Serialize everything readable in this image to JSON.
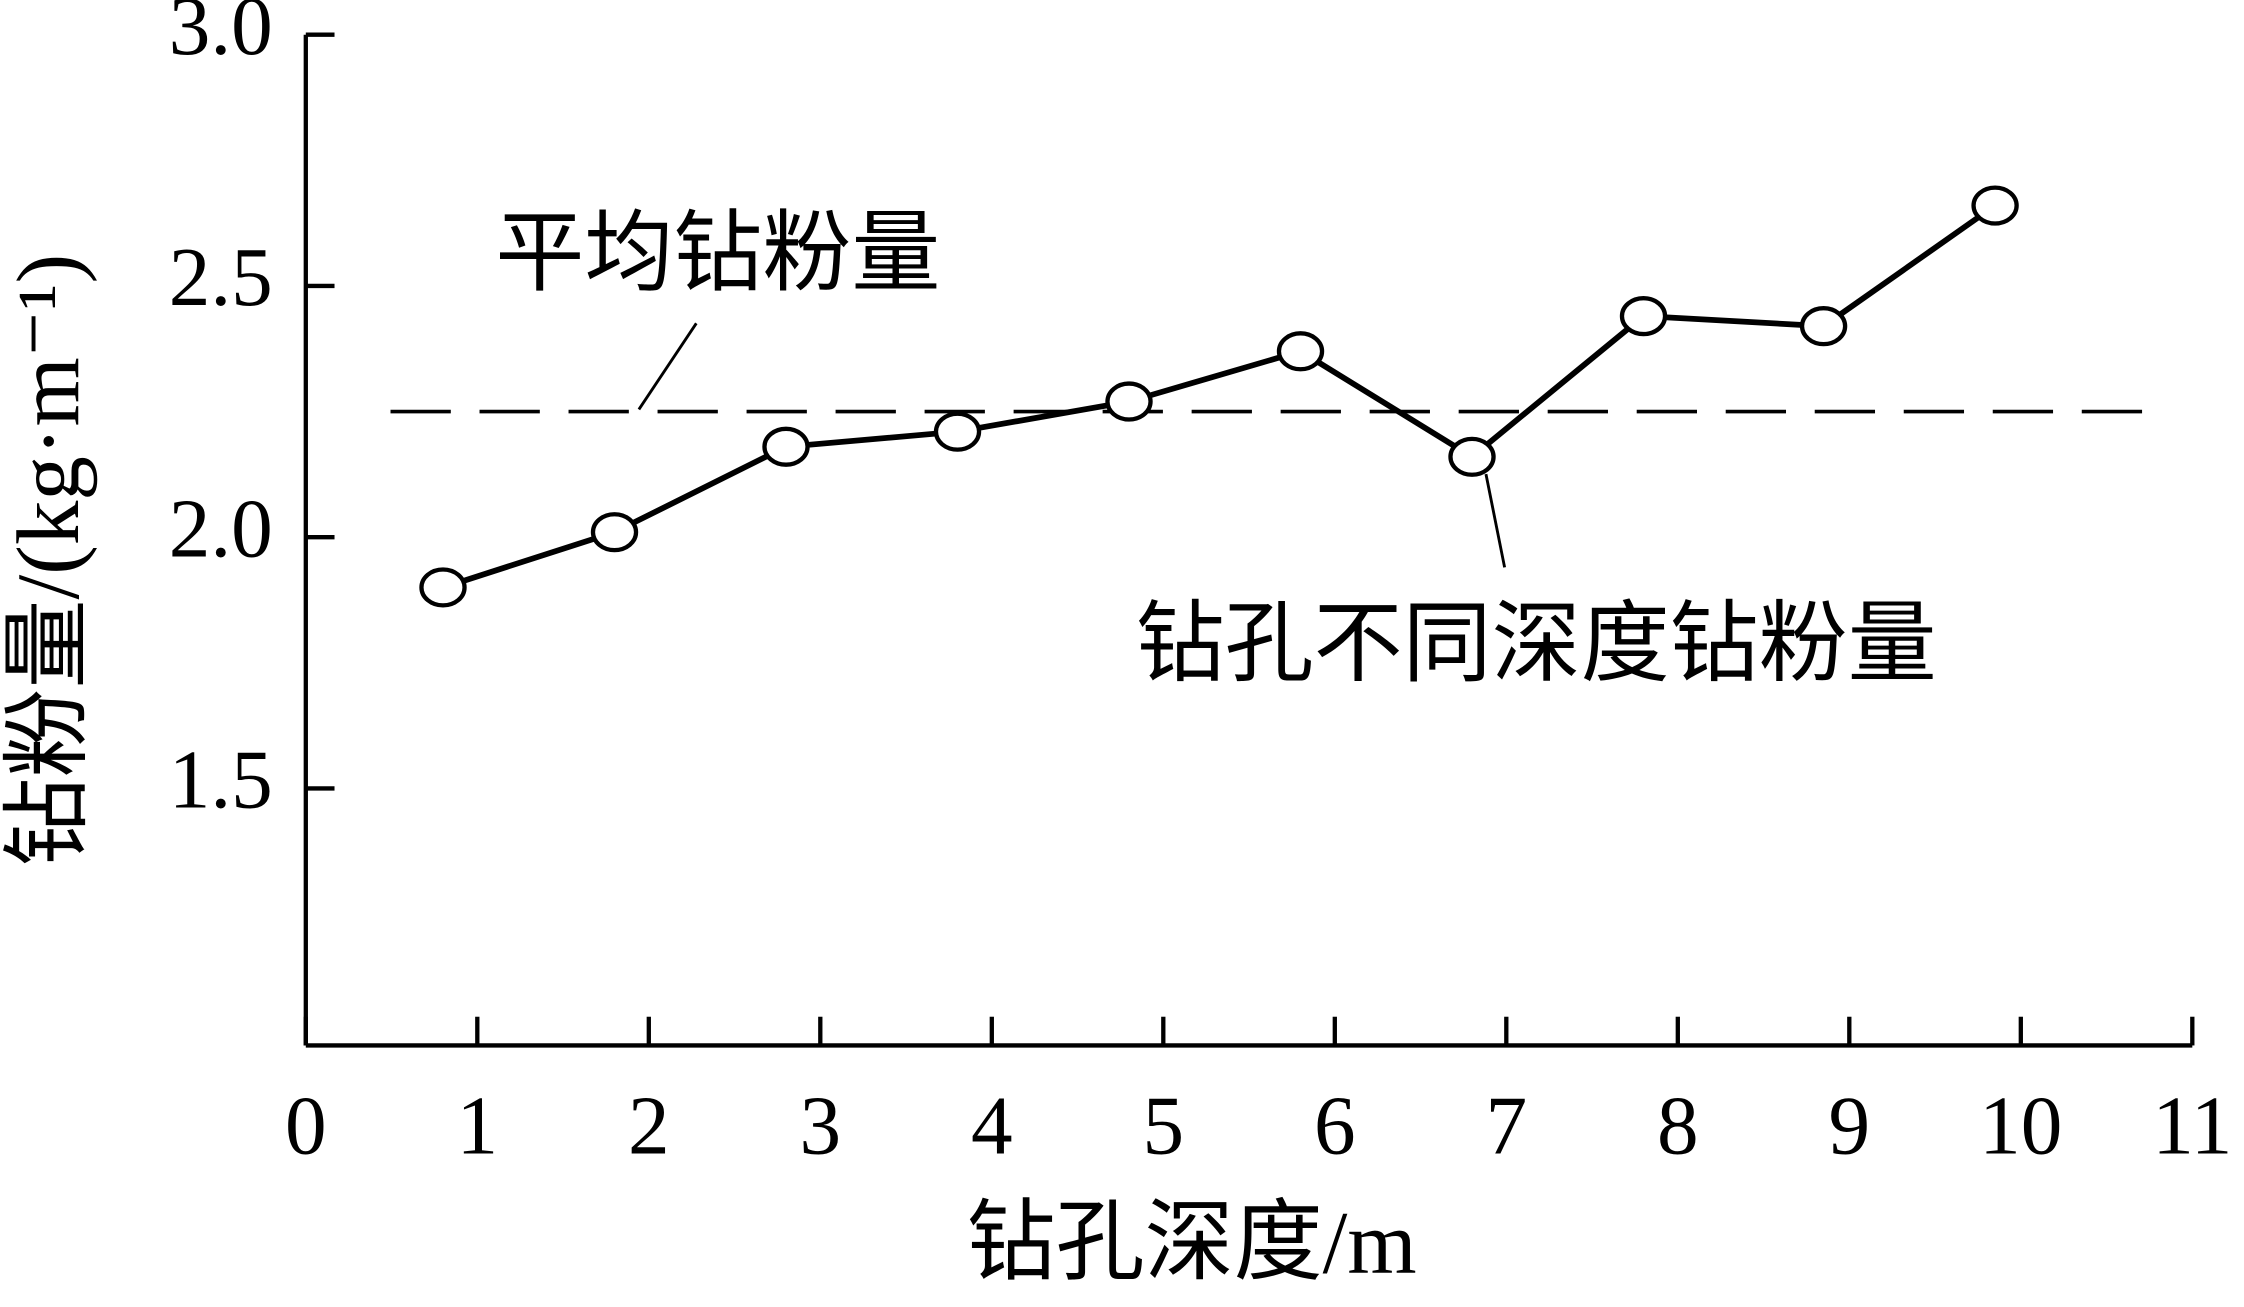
{
  "chart_data": {
    "type": "line",
    "xlabel": "钻孔深度/m",
    "ylabel": "钻粉量/(kg·m⁻¹)",
    "x": [
      0.8,
      1.8,
      2.8,
      3.8,
      4.8,
      5.8,
      6.8,
      7.8,
      8.85,
      9.85
    ],
    "series": [
      {
        "name": "钻孔不同深度钻粉量",
        "color": "#000000",
        "values": [
          1.9,
          2.01,
          2.18,
          2.21,
          2.27,
          2.37,
          2.16,
          2.44,
          2.42,
          2.66
        ]
      }
    ],
    "reference_line": {
      "label": "平均钻粉量",
      "value": 2.25
    },
    "xlim": [
      0,
      11
    ],
    "xticks": [
      0,
      1,
      2,
      3,
      4,
      5,
      6,
      7,
      8,
      9,
      10,
      11
    ],
    "ylim": [
      1.0,
      3.0
    ],
    "yticks": [
      {
        "value": 1.5,
        "label": "1.5"
      },
      {
        "value": 2.0,
        "label": "2.0"
      },
      {
        "value": 2.5,
        "label": "2.5"
      },
      {
        "value": 3.0,
        "label": "3.0"
      }
    ]
  }
}
